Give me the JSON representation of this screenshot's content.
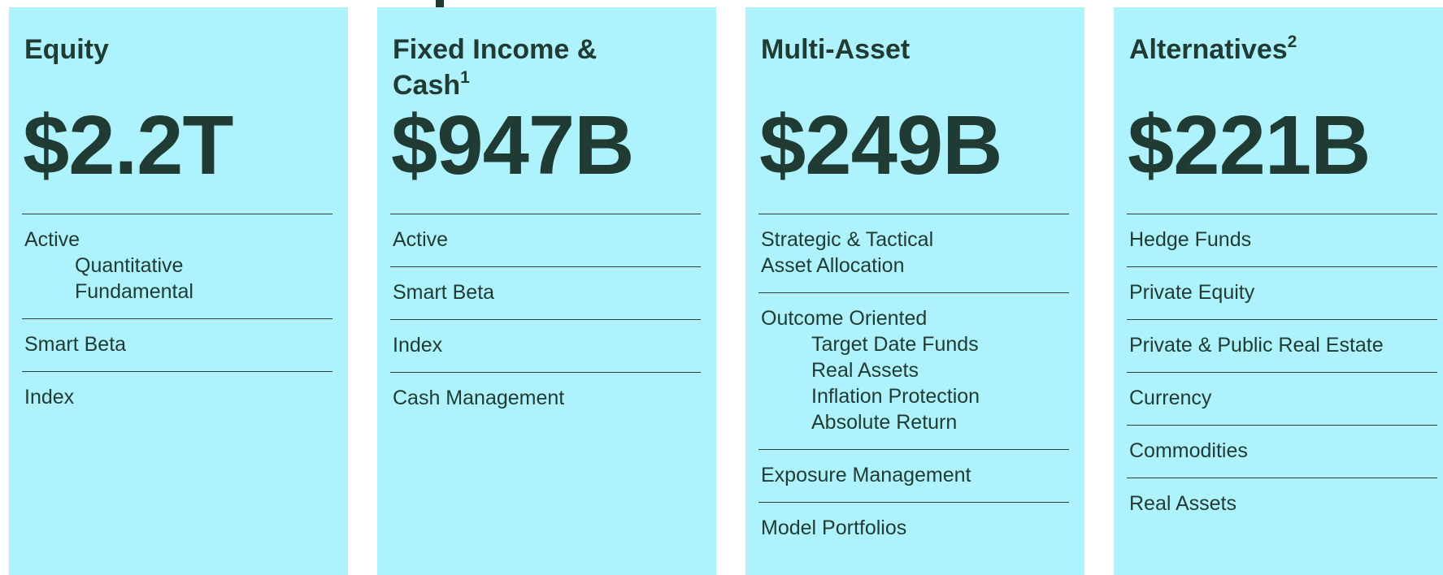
{
  "panels": [
    {
      "title": "Equity",
      "amount": "$2.2T",
      "items": [
        {
          "label": "Active",
          "sub": [
            "Quantitative",
            "Fundamental"
          ]
        },
        {
          "label": "Smart Beta"
        },
        {
          "label": "Index"
        }
      ]
    },
    {
      "title": "Fixed Income & Cash",
      "note": "1",
      "amount": "$947B",
      "items": [
        {
          "label": "Active"
        },
        {
          "label": "Smart Beta"
        },
        {
          "label": "Index"
        },
        {
          "label": "Cash Management"
        }
      ]
    },
    {
      "title": "Multi-Asset",
      "amount": "$249B",
      "items": [
        {
          "label": "Strategic & Tactical Asset Allocation"
        },
        {
          "label": "Outcome Oriented",
          "sub": [
            "Target Date Funds",
            "Real Assets",
            "Inflation Protection",
            "Absolute Return"
          ]
        },
        {
          "label": "Exposure Management"
        },
        {
          "label": "Model Portfolios"
        }
      ]
    },
    {
      "title": "Alternatives",
      "note": "2",
      "amount": "$221B",
      "items": [
        {
          "label": "Hedge Funds"
        },
        {
          "label": "Private Equity"
        },
        {
          "label": "Private & Public Real Estate"
        },
        {
          "label": "Currency"
        },
        {
          "label": "Commodities"
        },
        {
          "label": "Real Assets"
        }
      ]
    }
  ]
}
